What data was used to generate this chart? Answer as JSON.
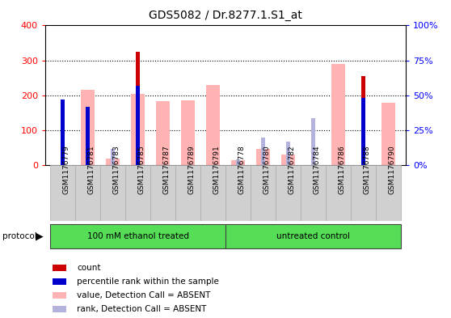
{
  "title": "GDS5082 / Dr.8277.1.S1_at",
  "samples": [
    "GSM1176779",
    "GSM1176781",
    "GSM1176783",
    "GSM1176785",
    "GSM1176787",
    "GSM1176789",
    "GSM1176791",
    "GSM1176778",
    "GSM1176780",
    "GSM1176782",
    "GSM1176784",
    "GSM1176786",
    "GSM1176788",
    "GSM1176790"
  ],
  "count_values": [
    185,
    0,
    0,
    325,
    0,
    0,
    0,
    0,
    0,
    0,
    0,
    0,
    255,
    0
  ],
  "rank_values": [
    47,
    42,
    0,
    57,
    0,
    0,
    0,
    0,
    0,
    0,
    0,
    0,
    48,
    0
  ],
  "absent_value": [
    0,
    215,
    20,
    205,
    183,
    185,
    230,
    15,
    48,
    30,
    0,
    290,
    0,
    180
  ],
  "absent_rank": [
    0,
    0,
    12,
    0,
    0,
    0,
    0,
    4,
    20,
    17,
    34,
    0,
    0,
    0
  ],
  "group1_count": 7,
  "group1_label": "100 mM ethanol treated",
  "group2_label": "untreated control",
  "ylim_left": [
    0,
    400
  ],
  "ylim_right": [
    0,
    100
  ],
  "yticks_left": [
    0,
    100,
    200,
    300,
    400
  ],
  "yticks_right": [
    0,
    25,
    50,
    75,
    100
  ],
  "ytick_labels_right": [
    "0%",
    "25%",
    "50%",
    "75%",
    "100%"
  ],
  "color_count": "#cc0000",
  "color_rank": "#0000cc",
  "color_absent_value": "#ffb3b3",
  "color_absent_rank": "#b3b3dd",
  "color_group_bg": "#55dd55",
  "bg_plot": "#ffffff",
  "bg_xticklabel": "#d0d0d0",
  "legend_items": [
    "count",
    "percentile rank within the sample",
    "value, Detection Call = ABSENT",
    "rank, Detection Call = ABSENT"
  ]
}
